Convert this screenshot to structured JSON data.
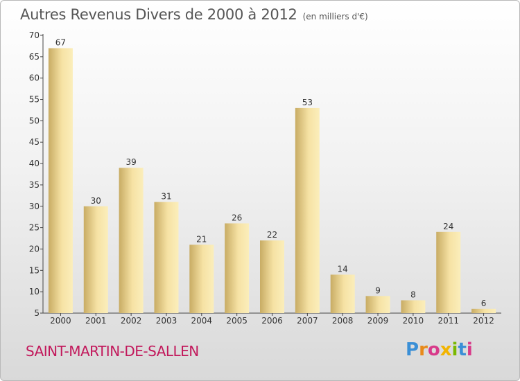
{
  "header": {
    "title": "Autres Revenus Divers de 2000 à 2012",
    "unit": "(en milliers d'€)"
  },
  "footer": {
    "commune": "SAINT-MARTIN-DE-SALLEN",
    "logo_letters": [
      "P",
      "r",
      "o",
      "x",
      "i",
      "t",
      "i"
    ],
    "logo_colors": [
      "#3a8fd6",
      "#e88a1a",
      "#d83a8a",
      "#f2b400",
      "#7ab800",
      "#3a8fd6",
      "#d83a8a"
    ]
  },
  "chart_data": {
    "type": "bar",
    "categories": [
      "2000",
      "2001",
      "2002",
      "2003",
      "2004",
      "2005",
      "2006",
      "2007",
      "2008",
      "2009",
      "2010",
      "2011",
      "2012"
    ],
    "values": [
      67,
      30,
      39,
      31,
      21,
      26,
      22,
      53,
      14,
      9,
      8,
      24,
      6
    ],
    "title": "Autres Revenus Divers de 2000 à 2012",
    "xlabel": "",
    "ylabel": "",
    "ylim": [
      5,
      70
    ],
    "yticks": [
      5,
      10,
      15,
      20,
      25,
      30,
      35,
      40,
      45,
      50,
      55,
      60,
      65,
      70
    ],
    "grid": false,
    "colors": {
      "bar_light": "#f6e2a4",
      "bar_dark": "#c8ac64",
      "axis": "#444444"
    }
  }
}
